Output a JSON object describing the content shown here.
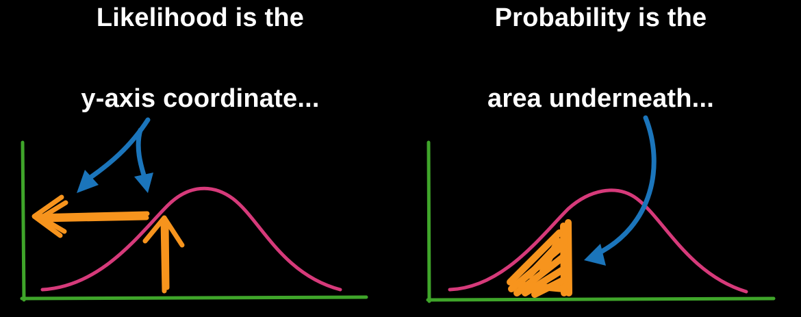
{
  "left_panel": {
    "caption_line1": "Likelihood is the",
    "caption_line2": "y-axis coordinate..."
  },
  "right_panel": {
    "caption_line1": "Probability is the",
    "caption_line2": "area underneath..."
  },
  "colors": {
    "background": "#000000",
    "text": "#ffffff",
    "axis": "#3fa52a",
    "curve": "#d63a7a",
    "highlight": "#f7941d",
    "pointer": "#1b75bb"
  }
}
